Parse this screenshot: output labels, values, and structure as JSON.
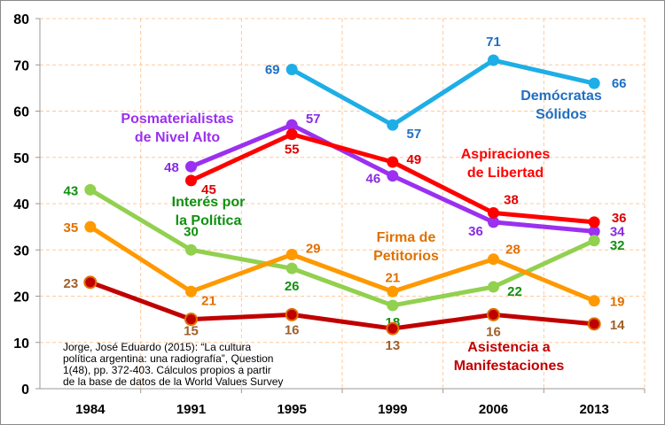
{
  "chart_data": {
    "type": "line",
    "categories": [
      "1984",
      "1991",
      "1995",
      "1999",
      "2006",
      "2013"
    ],
    "ylim": [
      0,
      80
    ],
    "yticks": [
      0,
      10,
      20,
      30,
      40,
      50,
      60,
      70,
      80
    ],
    "grid": true,
    "series": [
      {
        "name": "Demócratas Sólidos",
        "name_lines": [
          "Demócratas",
          "Sólidos"
        ],
        "color": "#1EAEE6",
        "label_color": "#1F6FC0",
        "values": [
          null,
          null,
          69,
          57,
          71,
          66
        ]
      },
      {
        "name": "Posmaterialistas de Nivel Alto",
        "name_lines": [
          "Posmaterialistas",
          "de Nivel Alto"
        ],
        "color": "#9B30F0",
        "label_color": "#8A2BE2",
        "values": [
          null,
          48,
          57,
          46,
          36,
          34
        ]
      },
      {
        "name": "Aspiraciones de Libertad",
        "name_lines": [
          "Aspiraciones",
          "de Libertad"
        ],
        "color": "#FF0000",
        "label_color": "#E00000",
        "values": [
          null,
          45,
          55,
          49,
          38,
          36
        ]
      },
      {
        "name": "Interés por la Política",
        "name_lines": [
          "Interés por",
          "la Política"
        ],
        "color": "#92D050",
        "label_color": "#109010",
        "values": [
          43,
          30,
          26,
          18,
          22,
          32
        ]
      },
      {
        "name": "Firma de Petitorios",
        "name_lines": [
          "Firma de",
          "Petitorios"
        ],
        "color": "#FF9900",
        "label_color": "#E07000",
        "values": [
          35,
          21,
          29,
          21,
          28,
          19
        ]
      },
      {
        "name": "Asistencia a Manifestaciones",
        "name_lines": [
          "Asistencia a",
          "Manifestaciones"
        ],
        "color": "#C00000",
        "label_color": "#A0602A",
        "values": [
          23,
          15,
          16,
          13,
          16,
          14
        ]
      }
    ],
    "source_lines": [
      "Jorge, José Eduardo (2015): “La cultura",
      "política argentina: una radiografía”, Question",
      "1(48), pp. 372-403. Cálculos propios a partir",
      "de la base de datos de la World Values Survey"
    ]
  }
}
